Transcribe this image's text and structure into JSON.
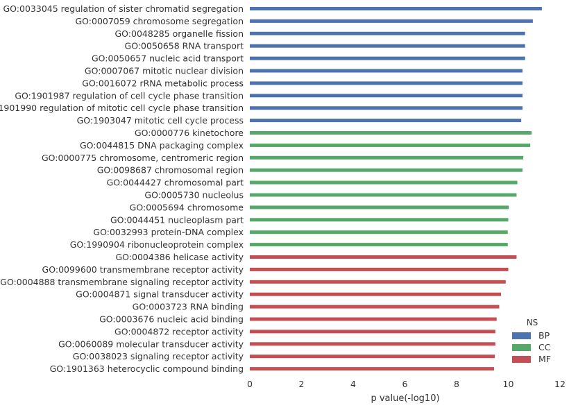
{
  "chart_data": {
    "type": "bar",
    "orientation": "horizontal",
    "title": "",
    "xlabel": "p value(-log10)",
    "ylabel": "",
    "xlim": [
      0,
      12
    ],
    "xticks": [
      0,
      2,
      4,
      6,
      8,
      10,
      12
    ],
    "grid": false,
    "legend": {
      "title": "NS",
      "position": "lower-right"
    },
    "colors": {
      "BP": "#4C72B0",
      "CC": "#55A868",
      "MF": "#C44E52"
    },
    "categories": [
      "GO:0033045 regulation of sister chromatid segregation",
      "GO:0007059 chromosome segregation",
      "GO:0048285 organelle fission",
      "GO:0050658 RNA transport",
      "GO:0050657 nucleic acid transport",
      "GO:0007067 mitotic nuclear division",
      "GO:0016072 rRNA metabolic process",
      "GO:1901987 regulation of cell cycle phase transition",
      "GO:1901990 regulation of mitotic cell cycle phase transition",
      "GO:1903047 mitotic cell cycle process",
      "GO:0000776 kinetochore",
      "GO:0044815 DNA packaging complex",
      "GO:0000775 chromosome, centromeric region",
      "GO:0098687 chromosomal region",
      "GO:0044427 chromosomal part",
      "GO:0005730 nucleolus",
      "GO:0005694 chromosome",
      "GO:0044451 nucleoplasm part",
      "GO:0032993 protein-DNA complex",
      "GO:1990904 ribonucleoprotein complex",
      "GO:0004386 helicase activity",
      "GO:0099600 transmembrane receptor activity",
      "GO:0004888 transmembrane signaling receptor activity",
      "GO:0004871 signal transducer activity",
      "GO:0003723 RNA binding",
      "GO:0003676 nucleic acid binding",
      "GO:0004872 receptor activity",
      "GO:0060089 molecular transducer activity",
      "GO:0038023 signaling receptor activity",
      "GO:1901363 heterocyclic compound binding"
    ],
    "groups": [
      "BP",
      "BP",
      "BP",
      "BP",
      "BP",
      "BP",
      "BP",
      "BP",
      "BP",
      "BP",
      "CC",
      "CC",
      "CC",
      "CC",
      "CC",
      "CC",
      "CC",
      "CC",
      "CC",
      "CC",
      "MF",
      "MF",
      "MF",
      "MF",
      "MF",
      "MF",
      "MF",
      "MF",
      "MF",
      "MF"
    ],
    "values": [
      11.3,
      10.95,
      10.65,
      10.65,
      10.65,
      10.55,
      10.55,
      10.55,
      10.55,
      10.5,
      10.9,
      10.85,
      10.58,
      10.55,
      10.35,
      10.32,
      10.02,
      10.0,
      9.98,
      9.98,
      10.32,
      10.0,
      9.9,
      9.72,
      9.65,
      9.55,
      9.5,
      9.5,
      9.48,
      9.45
    ]
  }
}
